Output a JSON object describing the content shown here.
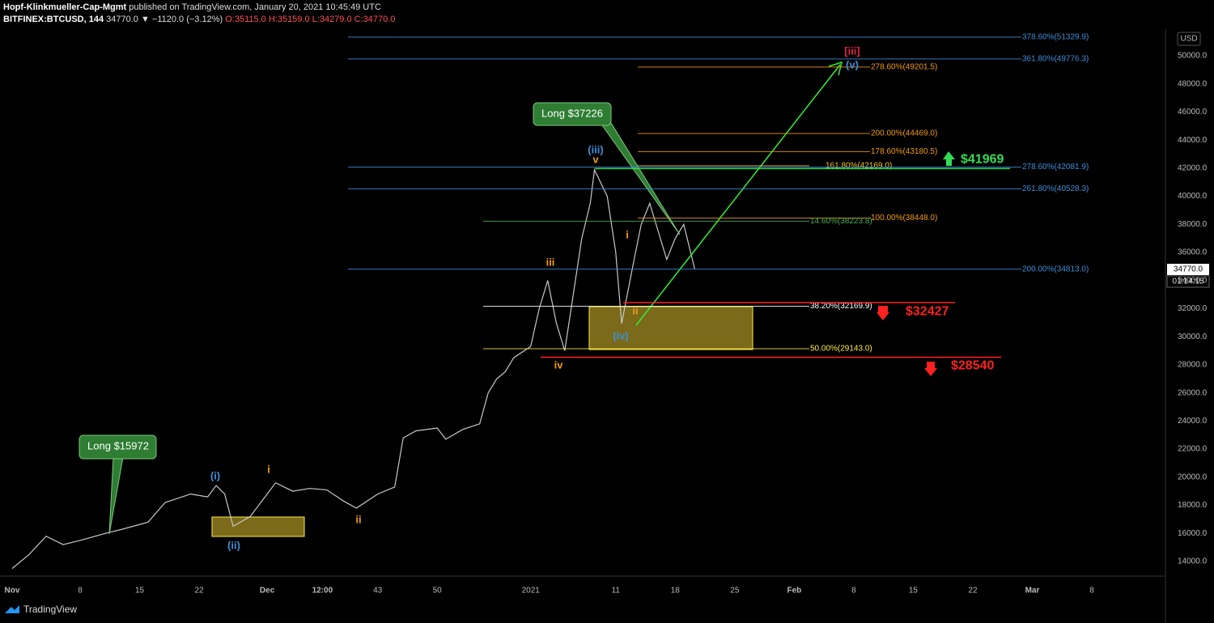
{
  "chart_data": {
    "type": "line",
    "title": {
      "author": "Hopf-Klinkmueller-Cap-Mgmt",
      "published": "published on TradingView.com, January 20, 2021 10:45:49 UTC"
    },
    "subtitle": {
      "symbol": "BITFINEX:BTCUSD, 144",
      "change": "34770.0 ▼ −1120.0 (−3.12%)",
      "ohlc": "O:35115.0 H:35159.0 L:34279.0 C:34770.0"
    },
    "currency": "USD",
    "price_tag": "34770.0",
    "countdown": "01:14:15",
    "brand": "TradingView",
    "series": [
      {
        "name": "BTCUSD",
        "color": "#c8c8c8",
        "x": [
          0,
          2,
          4,
          6,
          8,
          11,
          13,
          16,
          18,
          21,
          23,
          24,
          25,
          26,
          28,
          30,
          31,
          33,
          35,
          37,
          39,
          40.5,
          43,
          45,
          46,
          47.5,
          50,
          51,
          53,
          55,
          56,
          57,
          58,
          59,
          61,
          62,
          63,
          64,
          65,
          66,
          67,
          68,
          68.5,
          70,
          71,
          71.7,
          73,
          74,
          75,
          76,
          77,
          78,
          79,
          80.3
        ],
        "values": [
          13500,
          14500,
          15800,
          15200,
          15500,
          16000,
          16300,
          16800,
          18200,
          18800,
          18600,
          19400,
          18800,
          16500,
          17200,
          18800,
          19600,
          19000,
          19200,
          19100,
          18300,
          17800,
          18800,
          19300,
          22800,
          23300,
          23500,
          22700,
          23400,
          23800,
          26000,
          27000,
          27500,
          28500,
          29300,
          32000,
          34000,
          31000,
          29000,
          33000,
          37000,
          39500,
          41880,
          40000,
          36000,
          30940,
          35000,
          38000,
          39500,
          37500,
          35500,
          37000,
          38000,
          34800
        ]
      }
    ],
    "xlim": [
      -0.95,
      135.66
    ],
    "xticks": [
      {
        "value": 0,
        "label": "Nov"
      },
      8,
      15,
      22,
      {
        "value": 30,
        "label": "Dec"
      },
      {
        "value": 36.5,
        "label": "12:00"
      },
      43,
      50,
      {
        "value": 61,
        "label": "2021"
      },
      {
        "value": 71,
        "label": "11"
      },
      {
        "value": 78,
        "label": "18"
      },
      {
        "value": 85,
        "label": "25"
      },
      {
        "value": 92,
        "label": "Feb"
      },
      {
        "value": 99,
        "label": "8"
      },
      {
        "value": 106,
        "label": "15"
      },
      {
        "value": 113,
        "label": "22"
      },
      {
        "value": 120,
        "label": "Mar"
      },
      {
        "value": 127,
        "label": "8"
      }
    ],
    "ylim": [
      12960,
      51900
    ],
    "yticks": [
      {
        "value": 14000,
        "label": "14000.0"
      },
      {
        "value": 16000,
        "label": "16000.0"
      },
      {
        "value": 18000,
        "label": "18000.0"
      },
      {
        "value": 20000,
        "label": "20000.0"
      },
      {
        "value": 22000,
        "label": "22000.0"
      },
      {
        "value": 24000,
        "label": "24000.0"
      },
      {
        "value": 26000,
        "label": "26000.0"
      },
      {
        "value": 28000,
        "label": "28000.0"
      },
      {
        "value": 30000,
        "label": "30000.0"
      },
      {
        "value": 32000,
        "label": "32000.0"
      },
      {
        "value": 34000,
        "label": "34000.0"
      },
      {
        "value": 36000,
        "label": "36000.0"
      },
      {
        "value": 38000,
        "label": "38000.0"
      },
      {
        "value": 40000,
        "label": "40000.0"
      },
      {
        "value": 42000,
        "label": "42000.0"
      },
      {
        "value": 44000,
        "label": "44000.0"
      },
      {
        "value": 46000,
        "label": "46000.0"
      },
      {
        "value": 48000,
        "label": "48000.0"
      },
      {
        "value": 50000,
        "label": "50000.0"
      }
    ],
    "levels": [
      {
        "label": "378.60%(51329.9)",
        "value": 51329.9,
        "color": "#3d8fd9"
      },
      {
        "label": "361.80%(49776.3)",
        "value": 49776.3,
        "color": "#3d8fd9"
      },
      {
        "label": "278.60%(49201.5)",
        "value": 49201.5,
        "color": "#f39c12"
      },
      {
        "label": "200.00%(44469.0)",
        "value": 44469.0,
        "color": "#f39c12"
      },
      {
        "label": "178.60%(43180.5)",
        "value": 43180.5,
        "color": "#f39c12"
      },
      {
        "label": "161.80%(42169.0)",
        "value": 42169.0,
        "color": "#f5c518"
      },
      {
        "label": "278.60%(42081.9)",
        "value": 42081.9,
        "color": "#3d8fd9"
      },
      {
        "label": "261.80%(40528.3)",
        "value": 40528.3,
        "color": "#3d8fd9"
      },
      {
        "label": "100.00%(38448.0)",
        "value": 38448.0,
        "color": "#f39c12"
      },
      {
        "label": "14.60%(38223.8)",
        "value": 38223.8,
        "color": "#4caf50"
      },
      {
        "label": "200.00%(34813.0)",
        "value": 34813.0,
        "color": "#3d8fd9"
      },
      {
        "label": "38.20%(32169.9)",
        "value": 32169.9,
        "color": "#ffffff"
      },
      {
        "label": "50.00%(29143.0)",
        "value": 29143.0,
        "color": "#ffeb3b"
      }
    ],
    "targets": [
      {
        "label": "$41969",
        "value": 41969,
        "color": "#33dd55"
      },
      {
        "label": "$32427",
        "value": 32427,
        "color": "#ff2020"
      },
      {
        "label": "$28540",
        "value": 28540,
        "color": "#ff2020"
      }
    ],
    "annotations": [
      {
        "text": "(iii)",
        "color": "#3d8fd9"
      },
      {
        "text": "v",
        "color": "#f39c12"
      },
      {
        "text": "iii",
        "color": "#f39c12"
      },
      {
        "text": "iv",
        "color": "#f39c12"
      },
      {
        "text": "i",
        "color": "#f39c12"
      },
      {
        "text": "ii",
        "color": "#f39c12"
      },
      {
        "text": "(iv)",
        "color": "#3d8fd9"
      },
      {
        "text": "[iii]",
        "color": "#e0204a"
      },
      {
        "text": "(v)",
        "color": "#3d8fd9"
      },
      {
        "text": "(i)",
        "color": "#3d8fd9"
      },
      {
        "text": "i",
        "color": "#f39c12"
      },
      {
        "text": "(ii)",
        "color": "#3d8fd9"
      },
      {
        "text": "ii",
        "color": "#f39c12"
      }
    ],
    "callouts": [
      "Long $37226",
      "Long $15972"
    ]
  }
}
